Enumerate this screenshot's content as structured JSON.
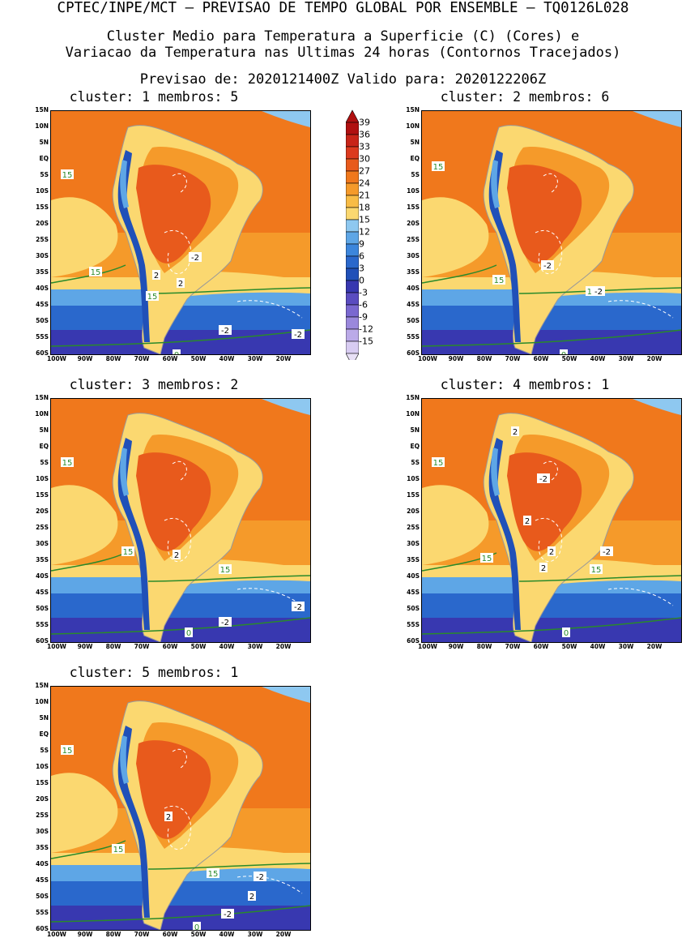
{
  "header": {
    "line1": "CPTEC/INPE/MCT – PREVISAO DE TEMPO GLOBAL POR ENSEMBLE – TQ0126L028",
    "line2": "Cluster Medio para Temperatura a Superficie (C) (Cores) e",
    "line3": "Variacao da Temperatura nas Ultimas 24 horas (Contornos Tracejados)",
    "line4": "Previsao de: 2020121400Z   Valido para: 2020122206Z"
  },
  "panels": [
    {
      "title": "cluster: 1   membros: 5",
      "labels": [
        "15",
        "15",
        "15",
        "0",
        "-2",
        "-2",
        "-2",
        "2",
        "2"
      ]
    },
    {
      "title": "cluster: 2   membros: 6",
      "labels": [
        "15",
        "15",
        "15",
        "0",
        "-2",
        "-2"
      ]
    },
    {
      "title": "cluster: 3   membros: 2",
      "labels": [
        "15",
        "15",
        "15",
        "0",
        "-2",
        "-2",
        "2"
      ]
    },
    {
      "title": "cluster: 4   membros: 1",
      "labels": [
        "15",
        "15",
        "15",
        "0",
        "-2",
        "-2",
        "2",
        "2",
        "2",
        "2"
      ]
    },
    {
      "title": "cluster: 5   membros: 1",
      "labels": [
        "15",
        "15",
        "15",
        "0",
        "-2",
        "-2",
        "2",
        "2"
      ]
    }
  ],
  "axes": {
    "lat_ticks": [
      "15N",
      "10N",
      "5N",
      "EQ",
      "5S",
      "10S",
      "15S",
      "20S",
      "25S",
      "30S",
      "35S",
      "40S",
      "45S",
      "50S",
      "55S",
      "60S"
    ],
    "lon_ticks": [
      "100W",
      "90W",
      "80W",
      "70W",
      "60W",
      "50W",
      "40W",
      "30W",
      "20W"
    ]
  },
  "colorbar": {
    "levels": [
      "39",
      "36",
      "33",
      "30",
      "27",
      "24",
      "21",
      "18",
      "15",
      "12",
      "9",
      "6",
      "3",
      "0",
      "-3",
      "-6",
      "-9",
      "-12",
      "-15"
    ],
    "colors": [
      "#b01010",
      "#c82418",
      "#dc3a1e",
      "#e85a1c",
      "#f0781c",
      "#f59a2a",
      "#f8bc46",
      "#fbd870",
      "#8ec8f0",
      "#5ea6e6",
      "#3c86dc",
      "#2a68cc",
      "#2050b8",
      "#3838b0",
      "#5a4cc0",
      "#7a68d0",
      "#9a88dc",
      "#bbaae8",
      "#d8ccf2"
    ]
  },
  "palette": {
    "ocean_warm": "#f0781c",
    "ocean_mild": "#f59a2a",
    "subtrop": "#fbd870",
    "cool": "#5ea6e6",
    "cold": "#2a68cc",
    "polar": "#3838b0",
    "land_hot": "#e85a1c",
    "andes": "#2050b8",
    "contour_15": "#2a8a2a"
  }
}
